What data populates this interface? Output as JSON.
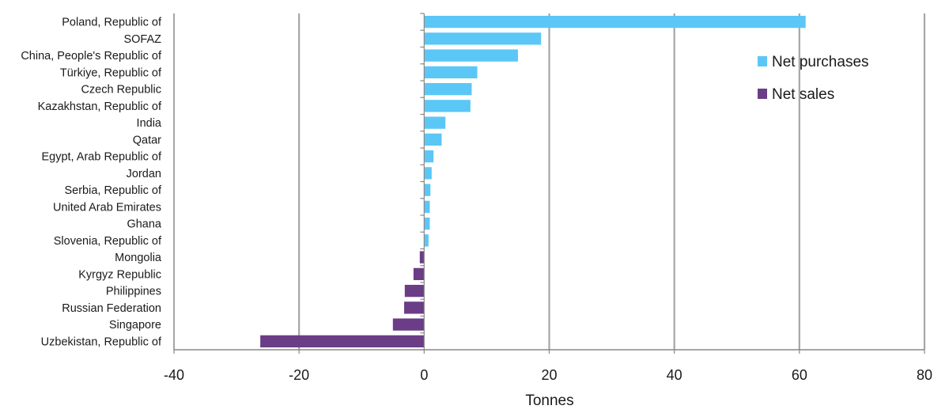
{
  "chart_data": {
    "type": "bar",
    "orientation": "horizontal",
    "title": "",
    "xlabel": "Tonnes",
    "ylabel": "",
    "xlim": [
      -40,
      80
    ],
    "xticks": [
      -40,
      -20,
      0,
      20,
      40,
      60,
      80
    ],
    "grid": true,
    "legend_position": "top-right",
    "colors": {
      "net_purchases": "#5bc7f6",
      "net_sales": "#6b3d86",
      "grid": "#a6a6a6",
      "axis": "#888888"
    },
    "legend": [
      {
        "label": "Net purchases",
        "color_key": "net_purchases"
      },
      {
        "label": "Net sales",
        "color_key": "net_sales"
      }
    ],
    "categories": [
      "Poland, Republic of",
      "SOFAZ",
      "China, People's Republic of",
      "Türkiye, Republic of",
      "Czech Republic",
      "Kazakhstan, Republic of",
      "India",
      "Qatar",
      "Egypt, Arab Republic of",
      "Jordan",
      "Serbia, Republic of",
      "United Arab Emirates",
      "Ghana",
      "Slovenia, Republic of",
      "Mongolia",
      "Kyrgyz Republic",
      "Philippines",
      "Russian Federation",
      "Singapore",
      "Uzbekistan, Republic of"
    ],
    "values": [
      61.0,
      18.7,
      15.0,
      8.5,
      7.6,
      7.4,
      3.4,
      2.8,
      1.5,
      1.2,
      1.0,
      0.9,
      0.9,
      0.7,
      -0.7,
      -1.7,
      -3.1,
      -3.2,
      -5.0,
      -26.2
    ]
  }
}
